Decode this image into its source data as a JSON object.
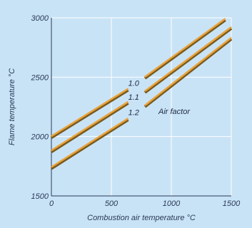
{
  "chart_data": {
    "type": "line",
    "title": "",
    "xlabel": "Combustion air temperature °C",
    "ylabel": "Flame temperature °C",
    "xlim": [
      0,
      1500
    ],
    "ylim": [
      1500,
      3000
    ],
    "xticks": [
      "0",
      "500",
      "1000",
      "1500"
    ],
    "yticks": [
      "1500",
      "2000",
      "2500",
      "3000"
    ],
    "grid": true,
    "annotation": "Air factor",
    "series": [
      {
        "name": "1.0",
        "x": [
          0,
          640,
          780,
          1450
        ],
        "y": [
          2000,
          2400,
          2500,
          2990
        ]
      },
      {
        "name": "1.1",
        "x": [
          0,
          640,
          780,
          1500
        ],
        "y": [
          1880,
          2290,
          2380,
          2920
        ]
      },
      {
        "name": "1.2",
        "x": [
          0,
          640,
          780,
          1500
        ],
        "y": [
          1740,
          2150,
          2260,
          2830
        ]
      }
    ],
    "colors": {
      "background": "#c9e3f6",
      "grid": "#ffffff",
      "axis": "#2a3a55",
      "line_highlight": "#e9a33c",
      "line_shadow": "#7a5a1c"
    }
  }
}
